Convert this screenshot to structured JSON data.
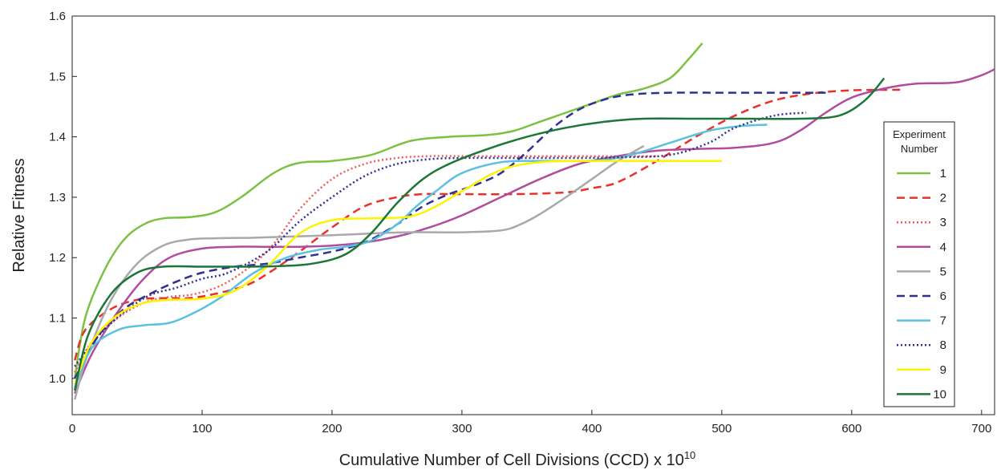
{
  "chart_data": {
    "type": "line",
    "title": "",
    "xlabel": "Cumulative Number of Cell Divisions (CCD) x 10",
    "xlabel_sup": "10",
    "ylabel": "Relative Fitness",
    "xlim": [
      0,
      710
    ],
    "ylim": [
      0.94,
      1.6
    ],
    "xticks": [
      0,
      100,
      200,
      300,
      400,
      500,
      600,
      700
    ],
    "yticks": [
      1.0,
      1.1,
      1.2,
      1.3,
      1.4,
      1.5,
      1.6
    ],
    "ytick_labels": [
      "1.0",
      "1.1",
      "1.2",
      "1.3",
      "1.4",
      "1.5",
      "1.6"
    ],
    "grid": false,
    "legend": {
      "title_line1": "Experiment",
      "title_line2": "Number",
      "placement": "right"
    },
    "series": [
      {
        "name": "1",
        "color": "#7cc242",
        "style": "solid",
        "x": [
          2,
          10,
          25,
          40,
          55,
          70,
          90,
          110,
          130,
          155,
          175,
          200,
          230,
          260,
          290,
          320,
          340,
          360,
          380,
          400,
          420,
          440,
          460,
          475,
          485
        ],
        "y": [
          1.0,
          1.1,
          1.18,
          1.23,
          1.255,
          1.265,
          1.267,
          1.275,
          1.3,
          1.34,
          1.357,
          1.36,
          1.37,
          1.393,
          1.4,
          1.403,
          1.41,
          1.425,
          1.44,
          1.455,
          1.47,
          1.48,
          1.497,
          1.53,
          1.555
        ]
      },
      {
        "name": "2",
        "color": "#e8312a",
        "style": "dashed",
        "x": [
          2,
          10,
          30,
          50,
          70,
          90,
          110,
          135,
          155,
          175,
          200,
          225,
          250,
          270,
          300,
          340,
          380,
          400,
          420,
          450,
          480,
          510,
          540,
          570,
          600,
          640
        ],
        "y": [
          1.03,
          1.08,
          1.115,
          1.13,
          1.133,
          1.133,
          1.14,
          1.155,
          1.18,
          1.21,
          1.25,
          1.285,
          1.3,
          1.305,
          1.305,
          1.305,
          1.308,
          1.315,
          1.325,
          1.36,
          1.4,
          1.435,
          1.46,
          1.472,
          1.477,
          1.478
        ]
      },
      {
        "name": "3",
        "color": "#f15a5a",
        "style": "dotted",
        "x": [
          2,
          15,
          35,
          55,
          75,
          95,
          120,
          150,
          175,
          200,
          225,
          250,
          275,
          300,
          330,
          360,
          390,
          420,
          450
        ],
        "y": [
          1.01,
          1.06,
          1.1,
          1.125,
          1.135,
          1.14,
          1.16,
          1.21,
          1.28,
          1.33,
          1.355,
          1.365,
          1.368,
          1.368,
          1.368,
          1.368,
          1.368,
          1.368,
          1.368
        ]
      },
      {
        "name": "4",
        "color": "#b14c9e",
        "style": "solid",
        "x": [
          2,
          15,
          35,
          55,
          75,
          100,
          125,
          150,
          175,
          200,
          225,
          250,
          275,
          300,
          330,
          360,
          390,
          420,
          450,
          480,
          510,
          540,
          560,
          580,
          600,
          625,
          650,
          680,
          700,
          712
        ],
        "y": [
          0.975,
          1.04,
          1.11,
          1.165,
          1.2,
          1.215,
          1.218,
          1.218,
          1.218,
          1.22,
          1.225,
          1.235,
          1.25,
          1.27,
          1.3,
          1.33,
          1.355,
          1.368,
          1.377,
          1.38,
          1.382,
          1.39,
          1.41,
          1.44,
          1.465,
          1.48,
          1.488,
          1.49,
          1.502,
          1.512
        ]
      },
      {
        "name": "5",
        "color": "#a7a9ac",
        "style": "solid",
        "x": [
          2,
          12,
          30,
          50,
          70,
          90,
          110,
          140,
          170,
          200,
          230,
          260,
          300,
          330,
          345,
          360,
          380,
          400,
          420,
          440
        ],
        "y": [
          0.965,
          1.04,
          1.13,
          1.19,
          1.22,
          1.23,
          1.232,
          1.233,
          1.235,
          1.237,
          1.24,
          1.242,
          1.242,
          1.245,
          1.255,
          1.272,
          1.3,
          1.33,
          1.36,
          1.385
        ]
      },
      {
        "name": "6",
        "color": "#2e3192",
        "style": "dashed",
        "x": [
          2,
          20,
          40,
          60,
          80,
          100,
          125,
          150,
          175,
          200,
          225,
          250,
          270,
          290,
          310,
          330,
          350,
          370,
          390,
          410,
          430,
          460,
          500,
          540,
          580
        ],
        "y": [
          1.0,
          1.07,
          1.115,
          1.14,
          1.16,
          1.175,
          1.185,
          1.19,
          1.2,
          1.21,
          1.225,
          1.255,
          1.285,
          1.305,
          1.32,
          1.34,
          1.375,
          1.415,
          1.445,
          1.462,
          1.47,
          1.473,
          1.473,
          1.473,
          1.473
        ]
      },
      {
        "name": "7",
        "color": "#5bc1de",
        "style": "solid",
        "x": [
          2,
          15,
          35,
          55,
          75,
          95,
          115,
          140,
          165,
          190,
          210,
          230,
          250,
          265,
          280,
          300,
          330,
          360,
          390,
          410,
          430,
          460,
          490,
          515,
          535
        ],
        "y": [
          0.985,
          1.05,
          1.08,
          1.088,
          1.092,
          1.11,
          1.135,
          1.175,
          1.2,
          1.213,
          1.218,
          1.228,
          1.255,
          1.285,
          1.31,
          1.34,
          1.358,
          1.36,
          1.36,
          1.362,
          1.37,
          1.39,
          1.41,
          1.418,
          1.42
        ]
      },
      {
        "name": "8",
        "color": "#2e3192",
        "style": "dotted",
        "x": [
          2,
          20,
          40,
          60,
          80,
          100,
          120,
          150,
          175,
          200,
          225,
          250,
          275,
          300,
          330,
          360,
          390,
          420,
          460,
          490,
          510,
          540,
          565
        ],
        "y": [
          1.02,
          1.07,
          1.11,
          1.138,
          1.15,
          1.165,
          1.175,
          1.21,
          1.26,
          1.3,
          1.335,
          1.355,
          1.363,
          1.365,
          1.365,
          1.365,
          1.365,
          1.366,
          1.37,
          1.39,
          1.415,
          1.435,
          1.44
        ]
      },
      {
        "name": "9",
        "color": "#fff200",
        "style": "solid",
        "x": [
          2,
          15,
          35,
          55,
          75,
          100,
          125,
          150,
          175,
          200,
          230,
          260,
          280,
          300,
          330,
          360,
          400,
          450,
          500
        ],
        "y": [
          0.99,
          1.06,
          1.105,
          1.125,
          1.13,
          1.132,
          1.145,
          1.185,
          1.24,
          1.262,
          1.265,
          1.268,
          1.285,
          1.31,
          1.345,
          1.358,
          1.36,
          1.36,
          1.36
        ]
      },
      {
        "name": "10",
        "color": "#1d7538",
        "style": "solid",
        "x": [
          2,
          12,
          30,
          50,
          70,
          100,
          130,
          160,
          185,
          210,
          230,
          250,
          270,
          290,
          320,
          350,
          380,
          410,
          440,
          480,
          520,
          560,
          590,
          610,
          625
        ],
        "y": [
          0.98,
          1.07,
          1.14,
          1.175,
          1.185,
          1.185,
          1.185,
          1.186,
          1.19,
          1.205,
          1.24,
          1.29,
          1.33,
          1.355,
          1.38,
          1.4,
          1.415,
          1.425,
          1.43,
          1.43,
          1.43,
          1.43,
          1.435,
          1.46,
          1.497
        ]
      }
    ]
  }
}
